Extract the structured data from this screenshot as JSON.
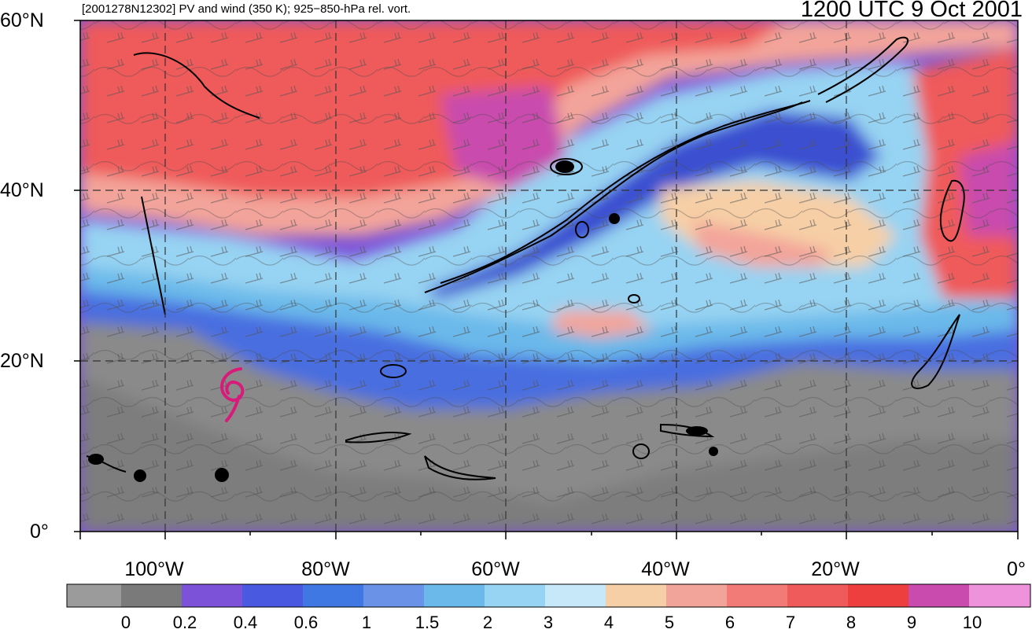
{
  "header": {
    "left_title": "[2001278N12302] PV and wind (350 K); 925−850-hPa rel. vort.",
    "right_title": "1200 UTC 9 Oct 2001"
  },
  "map": {
    "lat_labels": [
      "60°N",
      "40°N",
      "20°N",
      "0°"
    ],
    "lon_labels": [
      "100°W",
      "80°W",
      "60°W",
      "40°W",
      "20°W",
      "0°"
    ],
    "lon_range": [
      -110,
      0
    ],
    "lat_range": [
      0,
      60
    ],
    "storm_symbol": {
      "name": "tropical-cyclone-icon",
      "lon": -91.5,
      "lat": 16.5,
      "color": "#d81b7a"
    }
  },
  "colorbar": {
    "labels": [
      "0",
      "0.2",
      "0.4",
      "0.6",
      "1",
      "1.5",
      "2",
      "3",
      "4",
      "5",
      "6",
      "7",
      "8",
      "9",
      "10"
    ],
    "colors": [
      "#9b9b9b",
      "#7a7a7a",
      "#7b52d8",
      "#4a5ae0",
      "#3f78e2",
      "#6a93e8",
      "#6ab9ea",
      "#97d3f2",
      "#c6e8f8",
      "#f6cfa6",
      "#f3a49a",
      "#f27b78",
      "#ef5a5a",
      "#ee3f3f",
      "#c84bad",
      "#ef92dc"
    ]
  }
}
